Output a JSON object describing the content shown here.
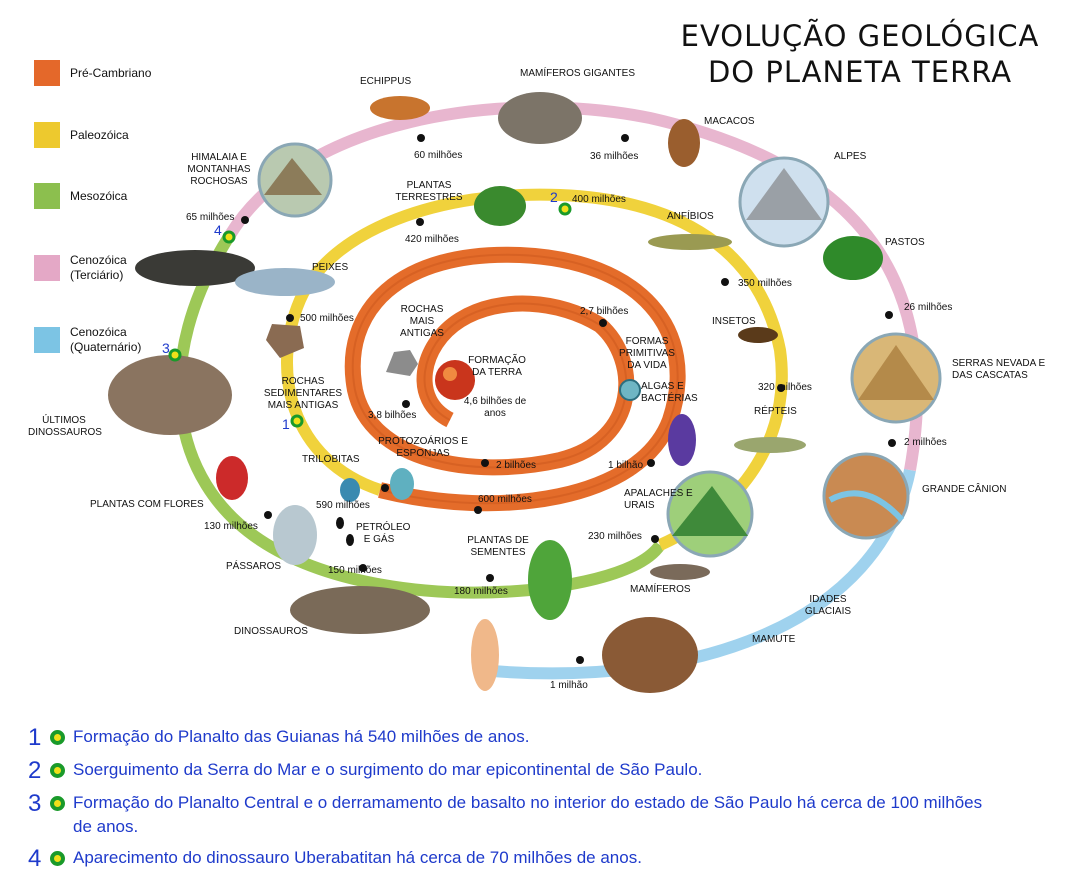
{
  "title": {
    "line1": "EVOLUÇÃO GEOLÓGICA",
    "line2": "DO PLANETA TERRA"
  },
  "legend": [
    {
      "label": "Pré-Cambriano",
      "color": "#e4682a"
    },
    {
      "label": "Paleozóica",
      "color": "#edc92e"
    },
    {
      "label": "Mesozóica",
      "color": "#8cbf4e"
    },
    {
      "label": "Cenozóica (Terciário)",
      "color": "#e4a8c6"
    },
    {
      "label": "Cenozóica (Quaternário)",
      "color": "#7cc4e4"
    }
  ],
  "labels": {
    "formacao_terra": "FORMAÇÃO DA TERRA",
    "idade_terra": "4,6 bilhões de anos",
    "rochas_antigas": "ROCHAS MAIS ANTIGAS",
    "m_3_8_bi": "3,8 bilhões",
    "m_2_7_bi": "2,7 bilhões",
    "formas_primitivas": "FORMAS PRIMITIVAS DA VIDA",
    "m_2_bi": "2 bilhões",
    "m_1_bi": "1 bilhão",
    "algas": "ALGAS E BACTÉRIAS",
    "protozoarios": "PROTOZOÁRIOS E ESPONJAS",
    "m_600": "600 milhões",
    "trilobitas": "TRILOBITAS",
    "m_590": "590 milhões",
    "rochas_sedimentares": "ROCHAS SEDIMENTARES MAIS ANTIGAS",
    "m_500": "500 milhões",
    "peixes": "PEIXES",
    "plantas_terrestres": "PLANTAS TERRESTRES",
    "m_420": "420 milhões",
    "m_400": "400 milhões",
    "anfibios": "ANFÍBIOS",
    "m_350": "350 milhões",
    "insetos": "INSETOS",
    "m_320": "320 milhões",
    "repteis": "RÉPTEIS",
    "apalaches": "APALACHES E URAIS",
    "m_230": "230 milhões",
    "mamiferos": "MAMÍFEROS",
    "plantas_sementes": "PLANTAS DE SEMENTES",
    "m_180": "180 milhões",
    "petroleo": "PETRÓLEO E GÁS",
    "m_150": "150 milhões",
    "passaros": "PÁSSAROS",
    "m_130": "130 milhões",
    "plantas_flores": "PLANTAS COM FLORES",
    "ultimos_dinos": "ÚLTIMOS DINOSSAUROS",
    "dinossauros": "DINOSSAUROS",
    "m_65": "65 milhões",
    "himalaia": "HIMALAIA E MONTANHAS ROCHOSAS",
    "m_60": "60 milhões",
    "echippus": "ECHIPPUS",
    "mamiferos_gigantes": "MAMÍFEROS GIGANTES",
    "m_36": "36 milhões",
    "macacos": "MACACOS",
    "alpes": "ALPES",
    "pastos": "PASTOS",
    "m_26": "26 milhões",
    "serras": "SERRAS NEVADA E DAS CASCATAS",
    "m_2": "2 milhões",
    "grande_canion": "GRANDE CÂNION",
    "idades_glaciais": "IDADES GLACIAIS",
    "mamute": "MAMUTE",
    "m_1": "1 milhão"
  },
  "markers": [
    "1",
    "2",
    "3",
    "4"
  ],
  "notes": [
    {
      "num": "1",
      "text": "Formação do Planalto das Guianas há 540 milhões de anos."
    },
    {
      "num": "2",
      "text": "Soerguimento da Serra do Mar e o surgimento do mar epicontinental de São Paulo."
    },
    {
      "num": "3",
      "text": "Formação do Planalto Central e o derramamento de basalto no interior do estado de São Paulo há cerca de 100 milhões de anos."
    },
    {
      "num": "4",
      "text": "Aparecimento do dinossauro Uberabatitan há cerca de 70 milhões de anos."
    }
  ],
  "colors": {
    "marker_ring": "#1a9a2a",
    "marker_fill": "#f0e01a",
    "note_text": "#1e3acb"
  }
}
